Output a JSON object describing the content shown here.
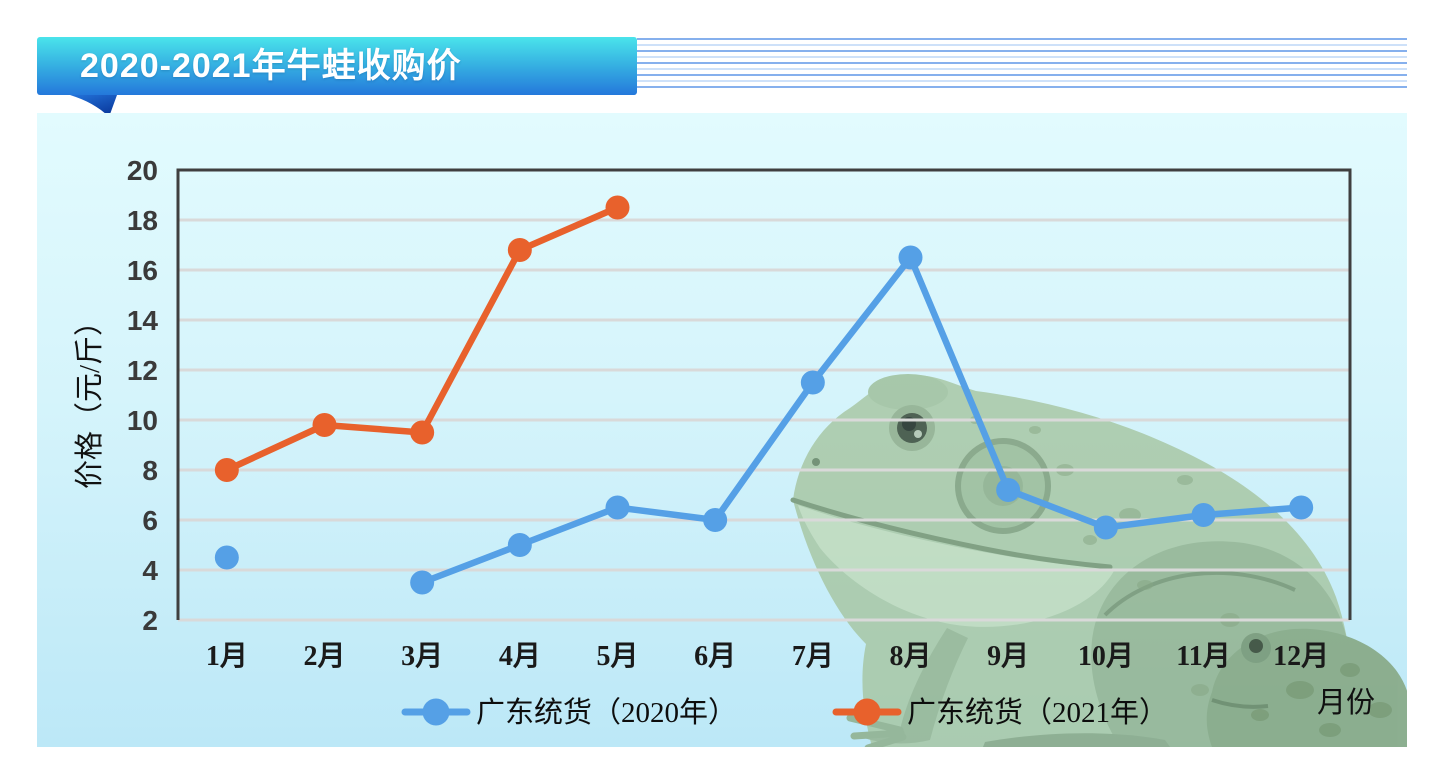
{
  "header": {
    "title": "2020-2021年牛蛙收购价",
    "banner_color_top": "#4AE4EB",
    "banner_color_bottom": "#2478DB",
    "pinstripe_colors": [
      "#86B0ED",
      "#CEE1F9"
    ]
  },
  "panel": {
    "background_top": "#E2FBFE",
    "background_bottom": "#BCE8F7"
  },
  "decor": {
    "images": [
      {
        "name": "bullfrog-photo-large"
      },
      {
        "name": "bullfrog-photo-small"
      }
    ]
  },
  "chart_data": {
    "type": "line",
    "title": "2020-2021年牛蛙收购价",
    "categories": [
      "1月",
      "2月",
      "3月",
      "4月",
      "5月",
      "6月",
      "7月",
      "8月",
      "9月",
      "10月",
      "11月",
      "12月"
    ],
    "series": [
      {
        "name": "广东统货（2020年）",
        "color": "#55A0E6",
        "values": [
          4.5,
          null,
          3.5,
          5,
          6.5,
          6,
          11.5,
          16.5,
          7.2,
          5.7,
          6.2,
          6.5
        ]
      },
      {
        "name": "广东统货（2021年）",
        "color": "#E8612C",
        "values": [
          8,
          9.8,
          9.5,
          16.8,
          18.5,
          null,
          null,
          null,
          null,
          null,
          null,
          null
        ]
      }
    ],
    "ylabel": "价格（元/斤）",
    "xlabel": "月份",
    "ylim": [
      2,
      20
    ],
    "ytick_step": 2,
    "grid": true,
    "legend_position": "bottom",
    "axis_color": "#3F3F3F",
    "gridline_color": "#D9D9D9",
    "tick_label_color": "#3A3A3A"
  }
}
